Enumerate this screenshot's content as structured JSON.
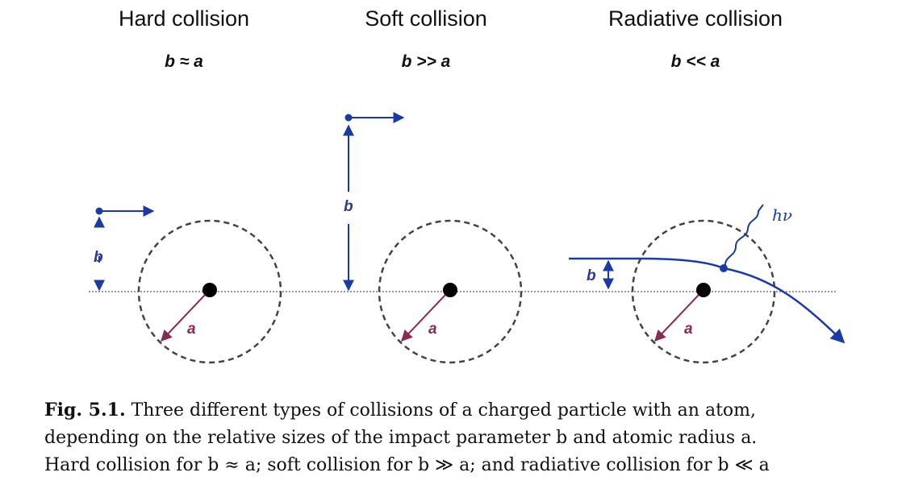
{
  "panels": [
    {
      "title": "Hard collision",
      "condition": "b ≈ a",
      "impact_label": "b",
      "radius_label": "a"
    },
    {
      "title": "Soft collision",
      "condition": "b >> a",
      "impact_label": "b",
      "radius_label": "a"
    },
    {
      "title": "Radiative collision",
      "condition": "b << a",
      "impact_label": "b",
      "radius_label": "a",
      "photon_label": "hν"
    }
  ],
  "colors": {
    "trajectory": "#1a3aa8",
    "radius_arrow": "#8a2b55",
    "nucleus": "#000000",
    "atom_boundary": "#444444",
    "axis": "#777777"
  },
  "caption": {
    "label": "Fig. 5.1.",
    "line1": "Three different types of collisions of a charged particle with an atom,",
    "line2": "depending on the relative sizes of the impact parameter b and atomic radius a.",
    "line3": "Hard collision for b ≈ a; soft collision for b ≫ a; and radiative collision for b ≪ a"
  }
}
